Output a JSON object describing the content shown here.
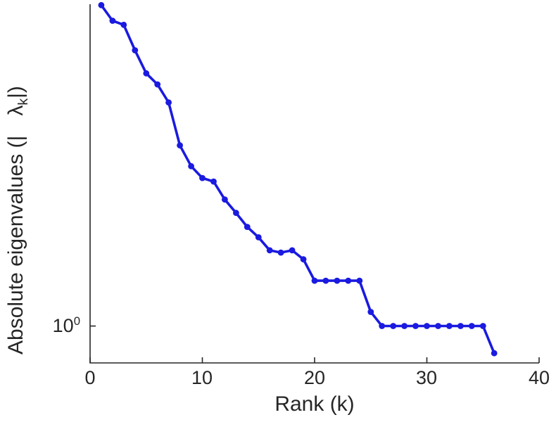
{
  "figure": {
    "background": "#ffffff",
    "line_color": "#1a1ae0",
    "axis_color": "#262626"
  },
  "labels": {
    "xlabel": "Rank (k)",
    "ylabel_prefix": "Absolute eigenvalues (|",
    "ylabel_lambda": "λ",
    "ylabel_sub": "k",
    "ylabel_suffix": "|)",
    "ytick_base": "10",
    "ytick_exp": "0"
  },
  "chart_data": {
    "type": "line",
    "title": "",
    "xlabel": "Rank (k)",
    "ylabel": "Absolute eigenvalues (|lambda_k|)",
    "yscale": "log",
    "grid": false,
    "legend": null,
    "marker": "circle",
    "xlim": [
      0,
      40
    ],
    "ylim": [
      0.88,
      3.05
    ],
    "xticks": [
      0,
      10,
      20,
      30,
      40
    ],
    "xticklabels": [
      "0",
      "10",
      "20",
      "30",
      "40"
    ],
    "yticks": [
      1
    ],
    "yticklabels": [
      "10^0"
    ],
    "x": [
      1,
      2,
      3,
      4,
      5,
      6,
      7,
      8,
      9,
      10,
      11,
      12,
      13,
      14,
      15,
      16,
      17,
      18,
      19,
      20,
      21,
      22,
      23,
      24,
      25,
      26,
      27,
      28,
      29,
      30,
      31,
      32,
      33,
      34,
      35,
      36
    ],
    "y": [
      3.04,
      2.88,
      2.84,
      2.6,
      2.4,
      2.31,
      2.17,
      1.87,
      1.74,
      1.67,
      1.65,
      1.55,
      1.48,
      1.41,
      1.36,
      1.3,
      1.29,
      1.3,
      1.26,
      1.17,
      1.17,
      1.17,
      1.17,
      1.17,
      1.05,
      1.0,
      1.0,
      1.0,
      1.0,
      1.0,
      1.0,
      1.0,
      1.0,
      1.0,
      1.0,
      0.91
    ]
  }
}
